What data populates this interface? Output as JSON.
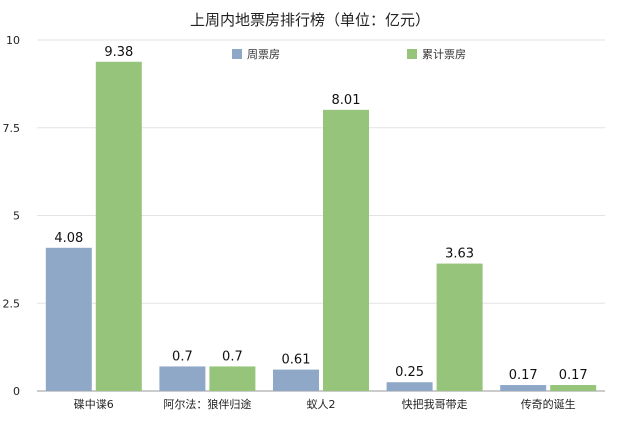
{
  "chart_data": {
    "type": "bar",
    "title": "上周内地票房排行榜（单位：亿元）",
    "categories": [
      "碟中谍6",
      "阿尔法：狼伴归途",
      "蚁人2",
      "快把我哥带走",
      "传奇的诞生"
    ],
    "series": [
      {
        "name": "周票房",
        "color": "#8fa8c8",
        "values": [
          4.08,
          0.7,
          0.61,
          0.25,
          0.17
        ]
      },
      {
        "name": "累计票房",
        "color": "#96c47a",
        "values": [
          9.38,
          0.7,
          8.01,
          3.63,
          0.17
        ]
      }
    ],
    "data_labels": [
      [
        "4.08",
        "0.7",
        "0.61",
        "0.25",
        "0.17"
      ],
      [
        "9.38",
        "0.7",
        "8.01",
        "3.63",
        "0.17"
      ]
    ],
    "yticks": [
      "0",
      "2.5",
      "5",
      "7.5",
      "10"
    ],
    "ytick_values": [
      0,
      2.5,
      5,
      7.5,
      10
    ],
    "ylim": [
      0,
      10
    ],
    "grid": true,
    "legend": "top-center"
  }
}
